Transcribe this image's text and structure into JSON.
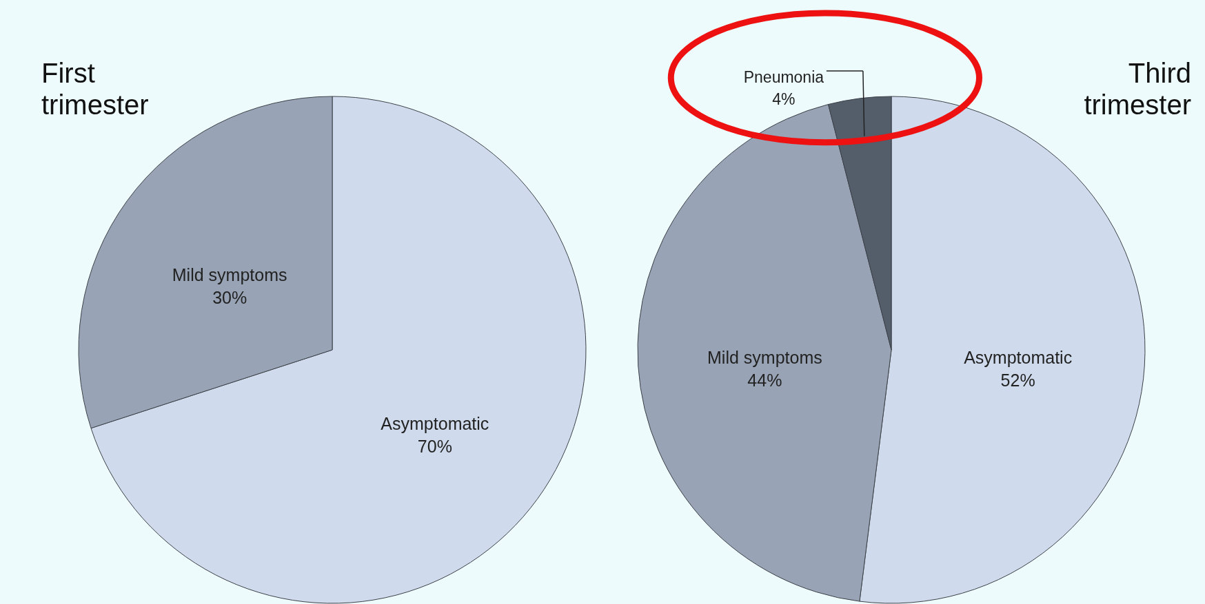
{
  "chart_data": [
    {
      "type": "pie",
      "title": "First trimester",
      "categories": [
        "Asymptomatic",
        "Mild symptoms"
      ],
      "values": [
        70,
        30
      ],
      "colors": [
        "#cfdbec",
        "#98a4b5"
      ],
      "value_labels": [
        "70%",
        "30%"
      ]
    },
    {
      "type": "pie",
      "title": "Third trimester",
      "categories": [
        "Asymptomatic",
        "Mild symptoms",
        "Pneumonia"
      ],
      "values": [
        52,
        44,
        4
      ],
      "colors": [
        "#cfdbec",
        "#98a4b5",
        "#545e6b"
      ],
      "value_labels": [
        "52%",
        "44%",
        "4%"
      ]
    }
  ]
}
